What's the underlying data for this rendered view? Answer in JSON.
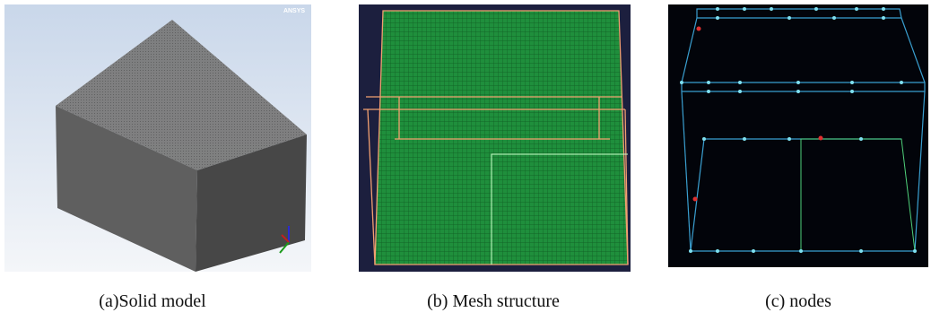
{
  "panels": [
    {
      "caption": "(a)Solid model",
      "logo": "ANSYS"
    },
    {
      "caption": "(b) Mesh structure"
    },
    {
      "caption": "(c) nodes"
    }
  ]
}
